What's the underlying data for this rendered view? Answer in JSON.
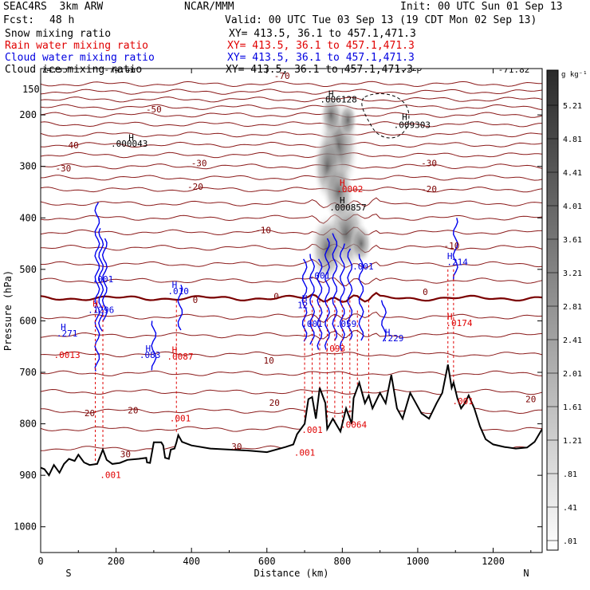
{
  "header": {
    "model": "SEAC4RS  3km ARW",
    "institution": "NCAR/MMM",
    "init": "Init: 00 UTC Sun 01 Sep 13",
    "fcst_label": "Fcst:",
    "fcst_value": "48 h",
    "valid": "Valid: 00 UTC Tue 03 Sep 13 (19 CDT Mon 02 Sep 13)",
    "fields": [
      {
        "name": "Snow mixing ratio",
        "xy": "XY= 413.5, 36.1 to 457.1,471.3",
        "color": "#000000"
      },
      {
        "name": "Rain water mixing ratio",
        "xy": "XY= 413.5, 36.1 to 457.1,471.3",
        "color": "#e00000"
      },
      {
        "name": "Cloud water mixing ratio",
        "xy": "XY= 413.5, 36.1 to 457.1,471.3",
        "color": "#0000e0"
      },
      {
        "name": "Cloud ice mixing ratio",
        "xy": "XY= 413.5, 36.1 to 457.1,471.3",
        "color": "#000000"
      }
    ]
  },
  "chart_data": {
    "type": "cross-section",
    "xlabel": "Distance (km)",
    "ylabel": "Pressure (hPa)",
    "xlim": [
      0,
      1330
    ],
    "ylim": [
      1050,
      110
    ],
    "xticks": [
      0,
      200,
      400,
      600,
      800,
      1000,
      1200
    ],
    "yticks": [
      200,
      300,
      400,
      500,
      600,
      700,
      800,
      900,
      1000
    ],
    "y_extra_label": {
      "value": 150,
      "label": "150"
    },
    "endpoints": {
      "left": "S",
      "right": "N"
    },
    "colorbar": {
      "unit": "g kg⁻¹",
      "labels": [
        "5.21",
        "4.81",
        "4.41",
        "4.01",
        "3.61",
        "3.21",
        "2.81",
        "2.41",
        "2.01",
        "1.61",
        "1.21",
        ".81",
        ".41",
        ".01"
      ]
    },
    "temperature_contour_labels": [
      {
        "x": 60,
        "p": 310,
        "text": "-30"
      },
      {
        "x": 80,
        "p": 265,
        "text": "-40"
      },
      {
        "x": 300,
        "p": 195,
        "text": "-50"
      },
      {
        "x": 640,
        "p": 130,
        "text": "-70"
      },
      {
        "x": 420,
        "p": 300,
        "text": "-30"
      },
      {
        "x": 410,
        "p": 345,
        "text": "-20"
      },
      {
        "x": 590,
        "p": 430,
        "text": "-10"
      },
      {
        "x": 1030,
        "p": 300,
        "text": "-30"
      },
      {
        "x": 1030,
        "p": 350,
        "text": "-20"
      },
      {
        "x": 1090,
        "p": 460,
        "text": "-10"
      },
      {
        "x": 410,
        "p": 565,
        "text": "0"
      },
      {
        "x": 625,
        "p": 558,
        "text": "0"
      },
      {
        "x": 1020,
        "p": 550,
        "text": "0"
      },
      {
        "x": 605,
        "p": 683,
        "text": "10"
      },
      {
        "x": 620,
        "p": 765,
        "text": "20"
      },
      {
        "x": 130,
        "p": 785,
        "text": "20"
      },
      {
        "x": 245,
        "p": 780,
        "text": "20"
      },
      {
        "x": 1300,
        "p": 758,
        "text": "20"
      },
      {
        "x": 225,
        "p": 865,
        "text": "30"
      },
      {
        "x": 520,
        "p": 850,
        "text": "30"
      }
    ],
    "max_labels": [
      {
        "x": 30,
        "p": 118,
        "text": "-74.55",
        "color": "#000000"
      },
      {
        "x": 210,
        "p": 118,
        "text": "-74.46",
        "color": "#000000"
      },
      {
        "x": 460,
        "p": 110,
        "text": "-74.48",
        "color": "#000000"
      },
      {
        "x": 970,
        "p": 115,
        "text": "-73.29",
        "color": "#000000"
      },
      {
        "x": 1125,
        "p": 110,
        "text": "-72.78",
        "color": "#000000"
      },
      {
        "x": 1255,
        "p": 118,
        "text": "-71.82",
        "color": "#000000"
      },
      {
        "x": 235,
        "p": 262,
        "text": ".000043",
        "color": "#000000"
      },
      {
        "x": 790,
        "p": 176,
        "text": ".006128",
        "color": "#000000"
      },
      {
        "x": 985,
        "p": 225,
        "text": ".009303",
        "color": "#000000"
      },
      {
        "x": 815,
        "p": 386,
        "text": ".000857",
        "color": "#000000"
      },
      {
        "x": 820,
        "p": 350,
        "text": ".0002",
        "color": "#e00000"
      },
      {
        "x": 160,
        "p": 585,
        "text": ".1296",
        "color": "#0000e0"
      },
      {
        "x": 70,
        "p": 630,
        "text": ".271",
        "color": "#0000e0"
      },
      {
        "x": 70,
        "p": 672,
        "text": ".0013",
        "color": "#e00000"
      },
      {
        "x": 290,
        "p": 672,
        "text": ".083",
        "color": "#0000e0"
      },
      {
        "x": 370,
        "p": 675,
        "text": ".0087",
        "color": "#e00000"
      },
      {
        "x": 365,
        "p": 548,
        "text": ".010",
        "color": "#0000e0"
      },
      {
        "x": 165,
        "p": 525,
        "text": ".001",
        "color": "#0000e0"
      },
      {
        "x": 695,
        "p": 575,
        "text": "12",
        "color": "#0000e0"
      },
      {
        "x": 720,
        "p": 612,
        "text": ".001",
        "color": "#0000e0"
      },
      {
        "x": 740,
        "p": 518,
        "text": ".001",
        "color": "#0000e0"
      },
      {
        "x": 810,
        "p": 612,
        "text": ".059",
        "color": "#0000e0"
      },
      {
        "x": 780,
        "p": 660,
        "text": ".093",
        "color": "#e00000"
      },
      {
        "x": 855,
        "p": 500,
        "text": ".001",
        "color": "#0000e0"
      },
      {
        "x": 935,
        "p": 640,
        "text": ".229",
        "color": "#0000e0"
      },
      {
        "x": 1105,
        "p": 492,
        "text": ".214",
        "color": "#0000e0"
      },
      {
        "x": 1110,
        "p": 610,
        "text": ".0174",
        "color": "#e00000"
      },
      {
        "x": 1120,
        "p": 762,
        "text": ".001",
        "color": "#e00000"
      },
      {
        "x": 720,
        "p": 818,
        "text": ".001",
        "color": "#e00000"
      },
      {
        "x": 700,
        "p": 862,
        "text": ".001",
        "color": "#e00000"
      },
      {
        "x": 830,
        "p": 808,
        "text": ".0064",
        "color": "#e00000"
      },
      {
        "x": 185,
        "p": 905,
        "text": ".001",
        "color": "#e00000"
      },
      {
        "x": 370,
        "p": 795,
        "text": ".001",
        "color": "#e00000"
      }
    ],
    "highs": [
      {
        "x": 240,
        "p": 250,
        "color": "#000000"
      },
      {
        "x": 770,
        "p": 165,
        "color": "#000000"
      },
      {
        "x": 965,
        "p": 210,
        "color": "#000000"
      },
      {
        "x": 800,
        "p": 372,
        "color": "#000000"
      },
      {
        "x": 800,
        "p": 338,
        "color": "#e00000"
      },
      {
        "x": 60,
        "p": 618,
        "color": "#0000e0"
      },
      {
        "x": 285,
        "p": 660,
        "color": "#0000e0"
      },
      {
        "x": 355,
        "p": 662,
        "color": "#e00000"
      },
      {
        "x": 355,
        "p": 536,
        "color": "#0000e0"
      },
      {
        "x": 145,
        "p": 572,
        "color": "#e00000"
      },
      {
        "x": 700,
        "p": 562,
        "color": "#0000e0"
      },
      {
        "x": 920,
        "p": 628,
        "color": "#0000e0"
      },
      {
        "x": 1085,
        "p": 480,
        "color": "#0000e0"
      },
      {
        "x": 1085,
        "p": 598,
        "color": "#e00000"
      }
    ],
    "terrain": [
      [
        0,
        885
      ],
      [
        10,
        888
      ],
      [
        22,
        900
      ],
      [
        35,
        880
      ],
      [
        50,
        895
      ],
      [
        62,
        878
      ],
      [
        75,
        868
      ],
      [
        90,
        872
      ],
      [
        100,
        860
      ],
      [
        115,
        875
      ],
      [
        130,
        880
      ],
      [
        150,
        878
      ],
      [
        165,
        850
      ],
      [
        175,
        870
      ],
      [
        190,
        878
      ],
      [
        210,
        876
      ],
      [
        230,
        870
      ],
      [
        260,
        868
      ],
      [
        280,
        866
      ],
      [
        282,
        875
      ],
      [
        290,
        876
      ],
      [
        300,
        836
      ],
      [
        320,
        836
      ],
      [
        325,
        842
      ],
      [
        330,
        866
      ],
      [
        340,
        868
      ],
      [
        345,
        850
      ],
      [
        355,
        848
      ],
      [
        360,
        836
      ],
      [
        365,
        822
      ],
      [
        375,
        835
      ],
      [
        400,
        842
      ],
      [
        450,
        848
      ],
      [
        500,
        850
      ],
      [
        550,
        852
      ],
      [
        600,
        855
      ],
      [
        650,
        845
      ],
      [
        670,
        840
      ],
      [
        680,
        820
      ],
      [
        700,
        800
      ],
      [
        710,
        752
      ],
      [
        720,
        748
      ],
      [
        730,
        790
      ],
      [
        740,
        730
      ],
      [
        755,
        760
      ],
      [
        760,
        810
      ],
      [
        775,
        790
      ],
      [
        795,
        815
      ],
      [
        810,
        770
      ],
      [
        825,
        800
      ],
      [
        830,
        750
      ],
      [
        845,
        720
      ],
      [
        860,
        760
      ],
      [
        870,
        745
      ],
      [
        880,
        770
      ],
      [
        900,
        740
      ],
      [
        915,
        760
      ],
      [
        930,
        705
      ],
      [
        945,
        770
      ],
      [
        960,
        790
      ],
      [
        980,
        740
      ],
      [
        995,
        760
      ],
      [
        1010,
        780
      ],
      [
        1030,
        790
      ],
      [
        1050,
        760
      ],
      [
        1065,
        740
      ],
      [
        1080,
        685
      ],
      [
        1090,
        730
      ],
      [
        1095,
        720
      ],
      [
        1105,
        750
      ],
      [
        1115,
        770
      ],
      [
        1125,
        760
      ],
      [
        1135,
        745
      ],
      [
        1150,
        770
      ],
      [
        1165,
        805
      ],
      [
        1180,
        830
      ],
      [
        1200,
        840
      ],
      [
        1230,
        845
      ],
      [
        1260,
        848
      ],
      [
        1290,
        846
      ],
      [
        1310,
        835
      ],
      [
        1330,
        810
      ]
    ]
  }
}
